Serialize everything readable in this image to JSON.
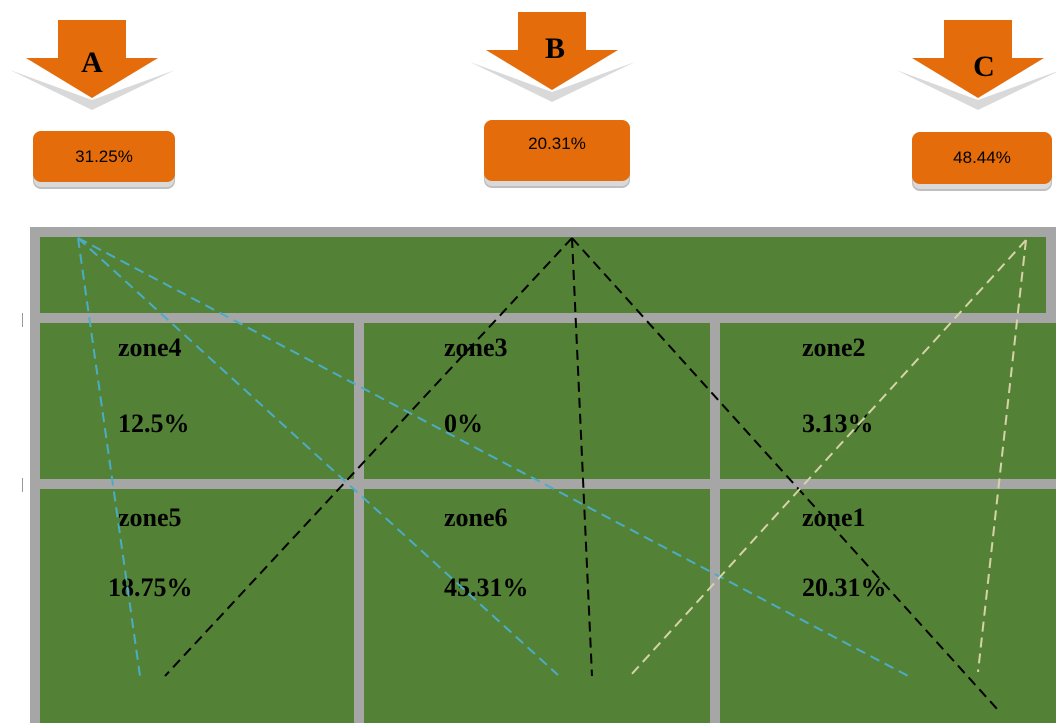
{
  "arrows": [
    {
      "letter": "A",
      "value": "31.25%"
    },
    {
      "letter": "B",
      "value": "20.31%"
    },
    {
      "letter": "C",
      "value": "48.44%"
    }
  ],
  "zones": [
    {
      "name": "zone4",
      "pct": "12.5%"
    },
    {
      "name": "zone3",
      "pct": "0%"
    },
    {
      "name": "zone2",
      "pct": "3.13%"
    },
    {
      "name": "zone5",
      "pct": "18.75%"
    },
    {
      "name": "zone6",
      "pct": "45.31%"
    },
    {
      "name": "zone1",
      "pct": "20.31%"
    }
  ],
  "colors": {
    "arrow_orange": "#e46c0a",
    "cell_green": "#538135",
    "frame_gray": "#a6a6a6",
    "line_A": "#4bacc6",
    "line_B": "#000000",
    "line_C": "#d6d3a8"
  }
}
